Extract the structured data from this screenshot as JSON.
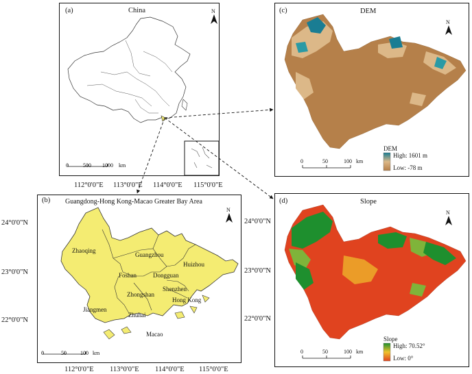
{
  "panel_a": {
    "label": "(a)",
    "title": "China",
    "scale": {
      "ticks": [
        "0",
        "500",
        "1000"
      ],
      "unit": "km"
    }
  },
  "panel_b": {
    "label": "(b)",
    "title": "Guangdong-Hong Kong-Macao Greater Bay Area",
    "x_ticks": [
      "112°0'0\"E",
      "113°0'0\"E",
      "114°0'0\"E",
      "115°0'0\"E"
    ],
    "y_ticks": [
      "24°0'0\"N",
      "23°0'0\"N",
      "22°0'0\"N"
    ],
    "cities": {
      "zhaoqing": "Zhaoqing",
      "guangzhou": "Guangzhou",
      "huizhou": "Huizhou",
      "foshan": "Foshan",
      "dongguan": "Dongguan",
      "jiangmen": "Jiangmen",
      "zhongshan": "Zhongshan",
      "shenzhen": "Shenzhen",
      "hongkong": "Hong Kong",
      "zhuhai": "Zhuhai",
      "macao": "Macao"
    },
    "scale": {
      "ticks": [
        "0",
        "50",
        "100"
      ],
      "unit": "km"
    }
  },
  "panel_c": {
    "label": "(c)",
    "title": "DEM",
    "legend_title": "DEM",
    "legend_high": "High: 1601 m",
    "legend_low": "Low: -78 m",
    "scale": {
      "ticks": [
        "0",
        "50",
        "100"
      ],
      "unit": "km"
    }
  },
  "panel_d": {
    "label": "(d)",
    "title": "Slope",
    "legend_title": "Slope",
    "legend_high": "High: 70.52°",
    "legend_low": "Low: 0°",
    "scale": {
      "ticks": [
        "0",
        "50",
        "100"
      ],
      "unit": "km"
    }
  },
  "top_x_ticks": [
    "112°0'0\"E",
    "113°0'0\"E",
    "114°0'0\"E",
    "115°0'0\"E"
  ],
  "north_label": "N",
  "colors": {
    "gba_fill": "#f4ec72",
    "dem_low": "#b5804a",
    "dem_mid": "#dcb888",
    "dem_high": "#1a7d93",
    "slope_low": "#e0431f",
    "slope_mid": "#f0c22c",
    "slope_high": "#1e8f2e"
  }
}
